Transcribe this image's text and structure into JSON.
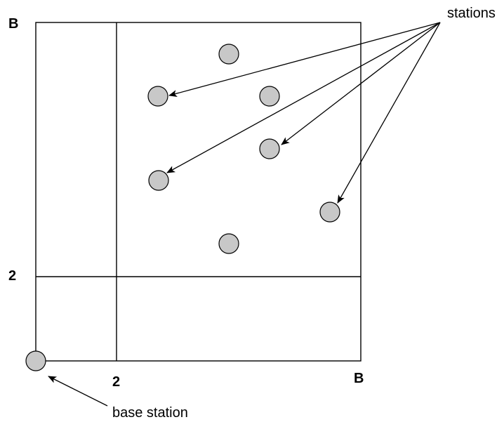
{
  "labels": {
    "b_top_left": "B",
    "two_left": "2",
    "two_bottom": "2",
    "b_bottom_right": "B",
    "stations": "stations",
    "base_station": "base station"
  },
  "colors": {
    "station_fill": "#c8c8c8",
    "stroke": "#000000"
  },
  "station_count": 7
}
